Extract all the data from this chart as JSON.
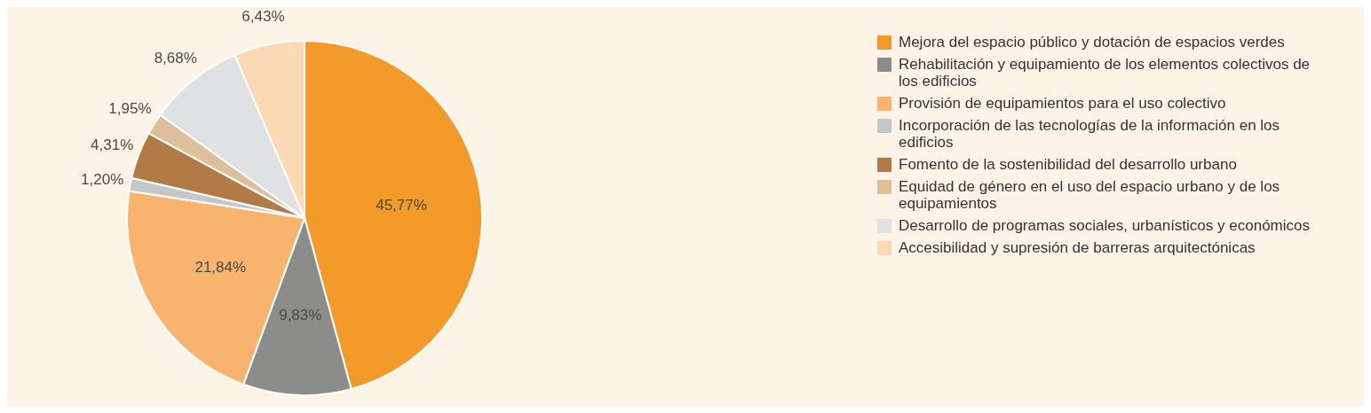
{
  "chart_data": {
    "type": "pie",
    "categories": [
      "Mejora del espacio público y dotación de espacios verdes",
      "Rehabilitación y equipamiento de los elementos colectivos de los edificios",
      "Provisión de equipamientos para el uso colectivo",
      "Incorporación de las tecnologías de la información en los edificios",
      "Fomento de la sostenibilidad del desarrollo urbano",
      "Equidad de género en el uso del espacio urbano y de los equipamientos",
      "Desarrollo de programas sociales, urbanísticos y económicos",
      "Accesibilidad y supresión de barreras arquitectónicas"
    ],
    "values": [
      45.77,
      9.83,
      21.84,
      1.2,
      4.31,
      1.95,
      8.68,
      6.43
    ],
    "value_labels": [
      "45,77%",
      "9,83%",
      "21,84%",
      "1,20%",
      "4,31%",
      "1,95%",
      "8,68%",
      "6,43%"
    ],
    "colors": [
      "#f39a2b",
      "#8c8c8a",
      "#f8b46e",
      "#c4c7c8",
      "#b07b45",
      "#ddbf9c",
      "#dfe1e2",
      "#fbd9b4"
    ],
    "legend": "right"
  }
}
